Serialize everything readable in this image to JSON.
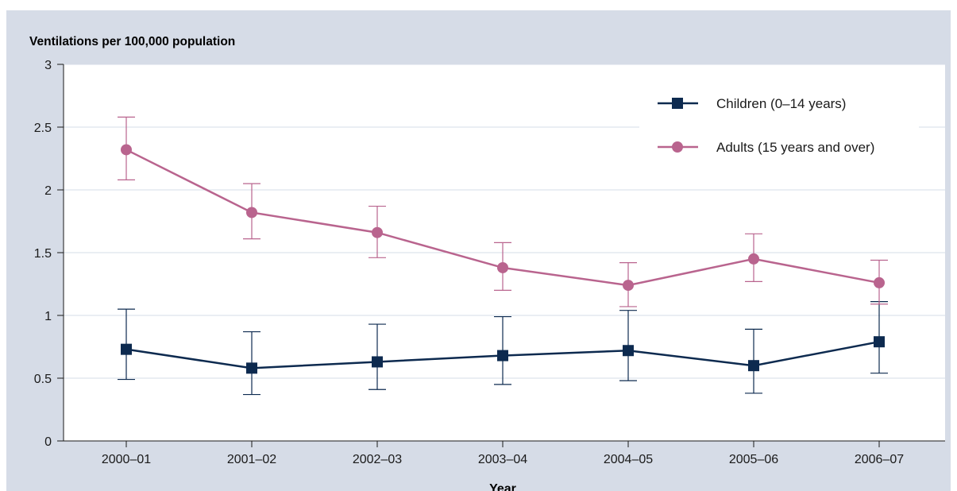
{
  "chart_data": {
    "type": "line",
    "title": "",
    "ylabel": "Ventilations per 100,000 population",
    "xlabel": "Year",
    "categories": [
      "2000–01",
      "2001–02",
      "2002–03",
      "2003–04",
      "2004–05",
      "2005–06",
      "2006–07"
    ],
    "ylim": [
      0,
      3
    ],
    "yticks": [
      "0",
      "0.5",
      "1",
      "1.5",
      "2",
      "2.5",
      "3"
    ],
    "ytick_values": [
      0,
      0.5,
      1,
      1.5,
      2,
      2.5,
      3
    ],
    "grid": true,
    "legend_position": "top-right",
    "series": [
      {
        "name": "Children (0–14 years)",
        "color": "#0d2a4f",
        "marker": "square",
        "values": [
          0.73,
          0.58,
          0.63,
          0.68,
          0.72,
          0.6,
          0.79
        ],
        "lower": [
          0.49,
          0.37,
          0.41,
          0.45,
          0.48,
          0.38,
          0.54
        ],
        "upper": [
          1.05,
          0.87,
          0.93,
          0.99,
          1.04,
          0.89,
          1.11
        ]
      },
      {
        "name": "Adults (15 years and over)",
        "color": "#b9648e",
        "marker": "circle",
        "values": [
          2.32,
          1.82,
          1.66,
          1.38,
          1.24,
          1.45,
          1.26
        ],
        "lower": [
          2.08,
          1.61,
          1.46,
          1.2,
          1.07,
          1.27,
          1.09
        ],
        "upper": [
          2.58,
          2.05,
          1.87,
          1.58,
          1.42,
          1.65,
          1.44
        ]
      }
    ]
  }
}
